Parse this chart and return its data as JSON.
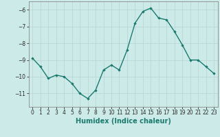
{
  "x": [
    0,
    1,
    2,
    3,
    4,
    5,
    6,
    7,
    8,
    9,
    10,
    11,
    12,
    13,
    14,
    15,
    16,
    17,
    18,
    19,
    20,
    21,
    22,
    23
  ],
  "y": [
    -8.9,
    -9.4,
    -10.1,
    -9.9,
    -10.0,
    -10.4,
    -11.0,
    -11.3,
    -10.8,
    -9.6,
    -9.3,
    -9.6,
    -8.4,
    -6.8,
    -6.1,
    -5.9,
    -6.5,
    -6.6,
    -7.3,
    -8.1,
    -9.0,
    -9.0,
    -9.4,
    -9.8
  ],
  "line_color": "#1a7a6e",
  "marker": "D",
  "markersize": 1.8,
  "linewidth": 1.0,
  "xlabel": "Humidex (Indice chaleur)",
  "xlabel_fontsize": 7,
  "xlabel_fontweight": "bold",
  "ylim": [
    -11.8,
    -5.5
  ],
  "xlim": [
    -0.5,
    23.5
  ],
  "yticks": [
    -11,
    -10,
    -9,
    -8,
    -7,
    -6
  ],
  "xticks": [
    0,
    1,
    2,
    3,
    4,
    5,
    6,
    7,
    8,
    9,
    10,
    11,
    12,
    13,
    14,
    15,
    16,
    17,
    18,
    19,
    20,
    21,
    22,
    23
  ],
  "bg_color": "#cceae8",
  "grid_color": "#b8d8d5",
  "tick_fontsize": 5.5,
  "spine_color": "#888888"
}
